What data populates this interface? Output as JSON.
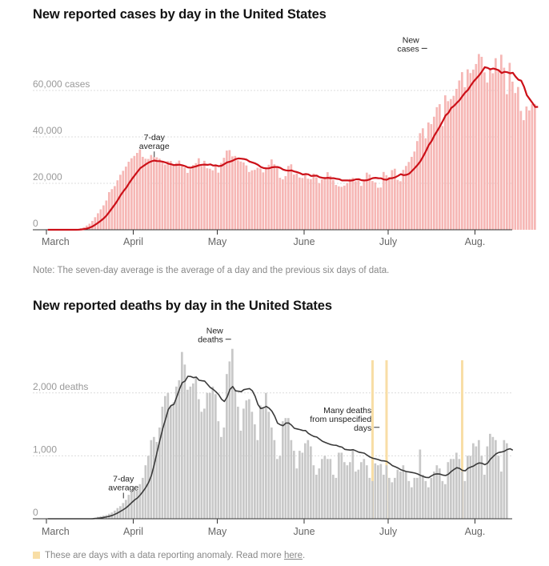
{
  "cases_chart": {
    "title": "New reported cases by day in the United States",
    "note": "Note: The seven-day average is the average of a day and the previous six days of data."
  },
  "deaths_chart": {
    "title": "New reported deaths by day in the United States",
    "legend_text": "These are days with a data reporting anomaly. Read more ",
    "legend_link": "here",
    "legend_end": "."
  },
  "colors": {
    "cases_bar": "#f6b7b5",
    "cases_line": "#cc1018",
    "deaths_bar": "#c8c8c8",
    "deaths_line": "#3a3a3a",
    "anomaly": "#f8dea6"
  },
  "chart_data": [
    {
      "type": "bar",
      "title": "New reported cases by day in the United States",
      "start_date": "2020-03-01",
      "ylim": [
        0,
        80000
      ],
      "yticks": [
        0,
        20000,
        40000,
        60000
      ],
      "ytick_labels": [
        "0",
        "20,000",
        "40,000",
        "60,000 cases"
      ],
      "xtick_labels": [
        "March",
        "April",
        "May",
        "June",
        "July",
        "Aug."
      ],
      "xtick_dates": [
        "2020-03-01",
        "2020-04-01",
        "2020-05-01",
        "2020-06-01",
        "2020-07-01",
        "2020-08-01"
      ],
      "annotations": [
        {
          "text": [
            "7-day",
            "average"
          ],
          "date": "2020-04-08",
          "value": 32000
        },
        {
          "text": [
            "New",
            "cases"
          ],
          "date": "2020-07-15",
          "value": 74000
        }
      ],
      "series": [
        {
          "name": "New cases",
          "values": [
            0,
            0,
            0,
            0,
            0,
            0,
            0,
            0,
            0,
            0,
            0,
            300,
            700,
            1100,
            1800,
            2600,
            3800,
            5400,
            7100,
            8800,
            10500,
            12600,
            16200,
            17500,
            18800,
            21300,
            23700,
            25400,
            27200,
            29300,
            30800,
            31800,
            33100,
            34600,
            31400,
            30600,
            30500,
            32200,
            31300,
            31200,
            30600,
            29400,
            28100,
            29600,
            29600,
            27700,
            28800,
            29800,
            27400,
            26800,
            24500,
            26100,
            27900,
            28700,
            30800,
            27500,
            29700,
            26500,
            26300,
            25600,
            27700,
            24600,
            28800,
            31000,
            34100,
            34300,
            31600,
            31800,
            29900,
            29400,
            29000,
            27700,
            24900,
            25600,
            25800,
            26700,
            26400,
            24700,
            26900,
            28000,
            30300,
            28200,
            26800,
            22400,
            21700,
            23100,
            27500,
            28200,
            23800,
            24300,
            22500,
            22300,
            23700,
            22000,
            21800,
            24200,
            22600,
            20100,
            21700,
            22700,
            24800,
            23200,
            21500,
            19300,
            18700,
            18500,
            19000,
            20100,
            21900,
            22400,
            20900,
            21300,
            18900,
            21300,
            24600,
            23800,
            21000,
            20400,
            18100,
            18200,
            24900,
            23500,
            22700,
            25700,
            26300,
            21500,
            20900,
            25800,
            27500,
            29200,
            31400,
            33700,
            38200,
            41600,
            43700,
            39400,
            46200,
            45500,
            48700,
            52800,
            54100,
            44700,
            57900,
            55400,
            56300,
            57700,
            60700,
            64300,
            67900,
            61400,
            69100,
            67500,
            69000,
            71400,
            75700,
            74500,
            67800,
            63400,
            69600,
            67400,
            73900,
            69200,
            75400,
            69800,
            58400,
            71900,
            63800,
            58900,
            61500,
            51200,
            47200,
            53100,
            51400,
            54100,
            54200
          ]
        },
        {
          "name": "7-day average",
          "values": [
            0,
            0,
            0,
            0,
            0,
            0,
            0,
            0,
            0,
            0,
            0,
            43,
            143,
            300,
            557,
            929,
            1471,
            2243,
            3057,
            3957,
            4957,
            6214,
            7786,
            9414,
            11043,
            12871,
            14943,
            16671,
            18129,
            20057,
            21814,
            23414,
            24986,
            26557,
            27386,
            28214,
            28957,
            29486,
            29843,
            29600,
            29543,
            29343,
            29000,
            28486,
            28214,
            27871,
            27929,
            28043,
            27797,
            27429,
            26853,
            26714,
            27023,
            27347,
            27800,
            28000,
            28054,
            27957,
            28163,
            27660,
            27760,
            27383,
            27586,
            28300,
            29043,
            29357,
            29766,
            30431,
            30731,
            30614,
            30471,
            30157,
            29394,
            29017,
            28586,
            27969,
            27080,
            26569,
            26456,
            26470,
            26913,
            27037,
            27043,
            26653,
            25929,
            25576,
            25460,
            25567,
            25093,
            24836,
            24393,
            23793,
            23986,
            23851,
            23157,
            23286,
            23294,
            22667,
            22371,
            22257,
            22366,
            22203,
            22214,
            21957,
            21786,
            21257,
            21251,
            21243,
            21160,
            21349,
            21740,
            21789,
            21343,
            21250,
            21350,
            21743,
            22231,
            22383,
            22220,
            22161,
            21671,
            21561,
            22140,
            22249,
            22574,
            23217,
            23926,
            23500,
            23660,
            24146,
            25354,
            26569,
            27920,
            29514,
            31631,
            33914,
            36514,
            38200,
            40631,
            42560,
            44603,
            46849,
            49234,
            50340,
            52434,
            53383,
            54643,
            55854,
            57546,
            59103,
            60257,
            62163,
            63897,
            65214,
            66554,
            68203,
            70037,
            69729,
            69103,
            69454,
            69131,
            68654,
            67517,
            68034,
            67851,
            67400,
            67629,
            65931,
            64606,
            64214,
            61611,
            57963,
            56314,
            54657,
            52883,
            52914
          ]
        }
      ]
    },
    {
      "type": "bar",
      "title": "New reported deaths by day in the United States",
      "start_date": "2020-03-01",
      "ylim": [
        0,
        2900
      ],
      "yticks": [
        0,
        1000,
        2000
      ],
      "ytick_labels": [
        "0",
        "1,000",
        "2,000 deaths"
      ],
      "xtick_labels": [
        "March",
        "April",
        "May",
        "June",
        "July",
        "Aug."
      ],
      "xtick_dates": [
        "2020-03-01",
        "2020-04-01",
        "2020-05-01",
        "2020-06-01",
        "2020-07-01",
        "2020-08-01"
      ],
      "anomaly_dates": [
        "2020-06-25",
        "2020-06-30",
        "2020-07-27"
      ],
      "annotations": [
        {
          "text": [
            "7-day",
            "average"
          ],
          "date": "2020-03-28",
          "value": 350
        },
        {
          "text": [
            "New",
            "deaths"
          ],
          "date": "2020-05-06",
          "value": 2700
        },
        {
          "text": [
            "Many deaths",
            "from unspecified",
            "days"
          ],
          "date": "2020-06-28",
          "value": 1300
        }
      ],
      "series": [
        {
          "name": "New deaths",
          "values": [
            0,
            0,
            0,
            0,
            0,
            0,
            0,
            0,
            0,
            0,
            0,
            0,
            0,
            0,
            0,
            0,
            10,
            20,
            30,
            40,
            50,
            60,
            80,
            100,
            130,
            170,
            200,
            250,
            300,
            380,
            420,
            500,
            450,
            550,
            650,
            850,
            1000,
            1250,
            1300,
            1220,
            1450,
            1780,
            1950,
            2000,
            1800,
            1850,
            2100,
            2200,
            2650,
            2450,
            2050,
            2100,
            2150,
            2250,
            1900,
            1700,
            1750,
            2000,
            2000,
            2100,
            1980,
            1550,
            1300,
            1450,
            2300,
            2500,
            2700,
            2050,
            1780,
            1400,
            1750,
            1880,
            1900,
            1700,
            1500,
            1250,
            1800,
            1750,
            2000,
            1700,
            1450,
            1250,
            950,
            1000,
            1550,
            1600,
            1600,
            1250,
            1080,
            800,
            1080,
            1050,
            1200,
            1250,
            1150,
            850,
            700,
            800,
            950,
            1000,
            950,
            950,
            700,
            650,
            1050,
            1050,
            900,
            850,
            900,
            1100,
            750,
            780,
            900,
            950,
            850,
            650,
            600,
            880,
            850,
            870,
            700,
            850,
            650,
            580,
            650,
            780,
            750,
            850,
            750,
            600,
            500,
            650,
            650,
            1100,
            700,
            600,
            500,
            650,
            750,
            850,
            800,
            600,
            550,
            900,
            950,
            950,
            1050,
            950,
            750,
            600,
            1000,
            1000,
            1200,
            1150,
            1250,
            1000,
            700,
            1150,
            1350,
            1300,
            1250,
            1000,
            750,
            1250,
            1200
          ]
        },
        {
          "name": "7-day average",
          "values": [
            0,
            0,
            0,
            0,
            0,
            0,
            0,
            0,
            0,
            0,
            0,
            0,
            0,
            0,
            0,
            0,
            1,
            4,
            9,
            14,
            21,
            30,
            41,
            54,
            73,
            94,
            120,
            146,
            177,
            216,
            260,
            300,
            331,
            380,
            436,
            500,
            580,
            693,
            864,
            1061,
            1247,
            1431,
            1578,
            1736,
            1800,
            1817,
            1934,
            2060,
            2163,
            2189,
            2264,
            2260,
            2243,
            2250,
            2201,
            2193,
            2186,
            2136,
            2085,
            2057,
            2018,
            1971,
            1900,
            1863,
            1933,
            2055,
            2101,
            2033,
            2026,
            2019,
            2051,
            2061,
            2068,
            2034,
            1946,
            1816,
            1751,
            1764,
            1785,
            1757,
            1708,
            1628,
            1519,
            1493,
            1479,
            1521,
            1521,
            1487,
            1437,
            1427,
            1417,
            1403,
            1402,
            1357,
            1331,
            1307,
            1299,
            1265,
            1232,
            1213,
            1196,
            1179,
            1170,
            1166,
            1149,
            1138,
            1103,
            1097,
            1091,
            1098,
            1079,
            1058,
            1051,
            1042,
            1010,
            981,
            962,
            951,
            940,
            924,
            919,
            911,
            880,
            844,
            827,
            806,
            780,
            765,
            751,
            743,
            735,
            726,
            712,
            691,
            672,
            657,
            654,
            683,
            707,
            713,
            710,
            694,
            687,
            709,
            750,
            783,
            812,
            800,
            768,
            762,
            803,
            822,
            838,
            869,
            886,
            882,
            860,
            883,
            946,
            989,
            1032,
            1053,
            1061,
            1073,
            1100,
            1113,
            1090
          ]
        }
      ]
    }
  ]
}
